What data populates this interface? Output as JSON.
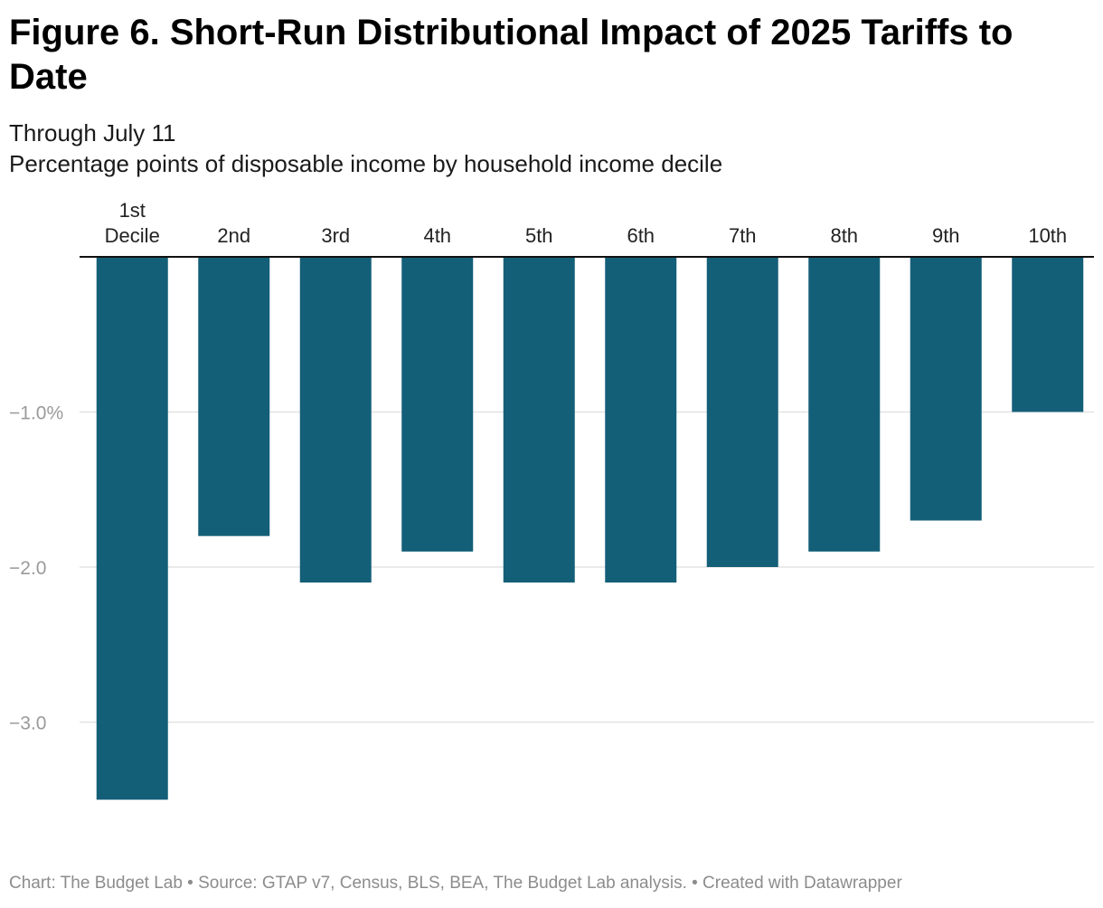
{
  "title": "Figure 6. Short-Run Distributional Impact of 2025 Tariffs to Date",
  "subtitle_1": "Through July 11",
  "subtitle_2": "Percentage points of disposable income by household income decile",
  "footer": "Chart: The Budget Lab • Source: GTAP v7, Census, BLS, BEA, The Budget Lab analysis. • Created with Datawrapper",
  "colors": {
    "bar": "#145f78",
    "grid": "#e3e3e3",
    "axis": "#111111",
    "tick_label": "#9a9a9a"
  },
  "chart_data": {
    "type": "bar",
    "categories": [
      "1st Decile",
      "2nd",
      "3rd",
      "4th",
      "5th",
      "6th",
      "7th",
      "8th",
      "9th",
      "10th"
    ],
    "values": [
      -3.5,
      -1.8,
      -2.1,
      -1.9,
      -2.1,
      -2.1,
      -2.0,
      -1.9,
      -1.7,
      -1.0
    ],
    "y_ticks": [
      -1.0,
      -2.0,
      -3.0
    ],
    "y_tick_labels": [
      "−1.0%",
      "−2.0",
      "−3.0"
    ],
    "ylim": [
      -3.5,
      0
    ],
    "xlabel": "",
    "ylabel": "",
    "category_axis_position": "top",
    "grid": true
  }
}
